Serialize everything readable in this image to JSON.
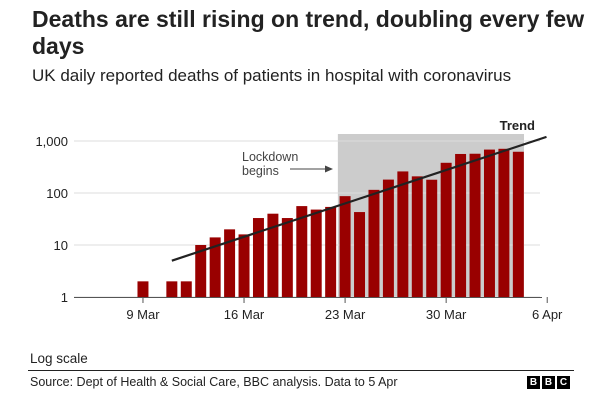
{
  "title": "Deaths are still rising on trend, doubling every few days",
  "subtitle": "UK daily reported deaths of patients in hospital with coronavirus",
  "note": "Log scale",
  "source": "Source: Dept of Health & Social Care, BBC analysis. Data to 5 Apr",
  "logo": [
    "B",
    "B",
    "C"
  ],
  "chart_data": {
    "type": "bar",
    "scale": "log",
    "ylim": [
      1,
      1000
    ],
    "yticks": [
      1,
      10,
      100,
      1000
    ],
    "ytick_labels": [
      "1",
      "10",
      "100",
      "1,000"
    ],
    "xticks": [
      "9 Mar",
      "16 Mar",
      "23 Mar",
      "30 Mar",
      "6 Apr"
    ],
    "categories": [
      "5 Mar",
      "6 Mar",
      "7 Mar",
      "8 Mar",
      "9 Mar",
      "10 Mar",
      "11 Mar",
      "12 Mar",
      "13 Mar",
      "14 Mar",
      "15 Mar",
      "16 Mar",
      "17 Mar",
      "18 Mar",
      "19 Mar",
      "20 Mar",
      "21 Mar",
      "22 Mar",
      "23 Mar",
      "24 Mar",
      "25 Mar",
      "26 Mar",
      "27 Mar",
      "28 Mar",
      "29 Mar",
      "30 Mar",
      "31 Mar",
      "1 Apr",
      "2 Apr",
      "3 Apr",
      "4 Apr",
      "5 Apr"
    ],
    "values": [
      null,
      null,
      null,
      null,
      2,
      null,
      2,
      2,
      10,
      14,
      20,
      16,
      33,
      40,
      33,
      56,
      48,
      54,
      87,
      43,
      115,
      181,
      260,
      209,
      180,
      381,
      563,
      569,
      684,
      708,
      621,
      null
    ],
    "trend_label": "Trend",
    "trend": {
      "start": "11 Mar",
      "start_value": 5,
      "end": "6 Apr",
      "end_value": 1200
    },
    "annotation": {
      "label_line1": "Lockdown",
      "label_line2": "begins",
      "shade_from": "23 Mar"
    },
    "colors": {
      "bar": "#990000",
      "trend": "#222222",
      "shade": "#cccccc",
      "grid": "#dddddd"
    }
  }
}
